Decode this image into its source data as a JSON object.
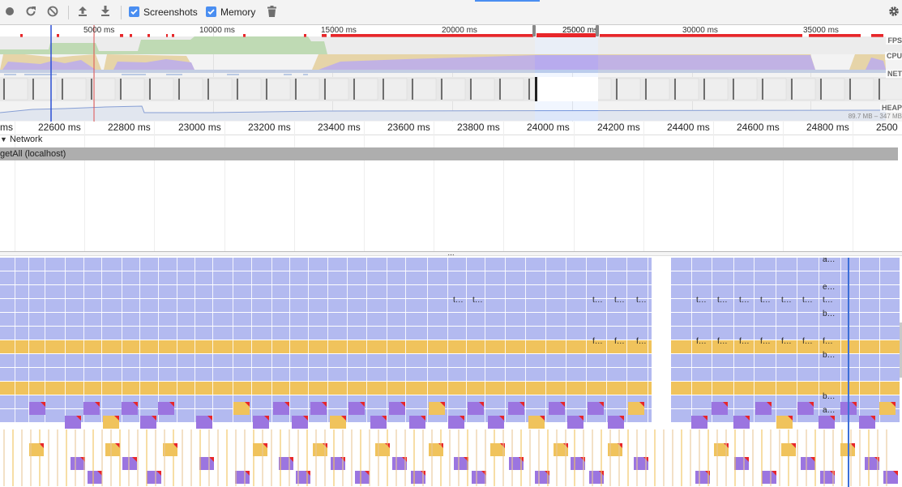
{
  "toolbar": {
    "record_label": "Record",
    "reload_label": "Reload and record",
    "clear_label": "Clear",
    "load_label": "Load profile",
    "save_label": "Save profile",
    "screenshots": {
      "label": "Screenshots",
      "checked": true
    },
    "memory": {
      "label": "Memory",
      "checked": true
    },
    "gc_label": "Collect garbage",
    "settings_label": "Capture settings"
  },
  "overview": {
    "ticks": [
      "5000 ms",
      "10000 ms",
      "15000 ms",
      "20000 ms",
      "25000 ms",
      "30000 ms",
      "35000 ms"
    ],
    "lanes": {
      "fps": "FPS",
      "cpu": "CPU",
      "net": "NET",
      "heap": "HEAP"
    },
    "heap_range": "89.7 MB – 347 MB",
    "selection_label": "25000 ms"
  },
  "ruler": {
    "ticks": [
      "ms",
      "22600 ms",
      "22800 ms",
      "23000 ms",
      "23200 ms",
      "23400 ms",
      "23600 ms",
      "23800 ms",
      "24000 ms",
      "24200 ms",
      "24400 ms",
      "24600 ms",
      "24800 ms",
      "2500"
    ]
  },
  "network": {
    "section_label": "Network",
    "request_label": "getAll (localhost)"
  },
  "divider_label": "...",
  "flame": {
    "labels": {
      "row0": "a…",
      "row2": "e…",
      "row3": "t…",
      "row4": "b…",
      "row6": "f…",
      "row7": "b…",
      "row10": "b…",
      "row11": "a…"
    }
  },
  "colors": {
    "script_blue": "#b3baf0",
    "yellow": "#f0c35c",
    "purple": "#9b75e0",
    "red": "#e8262a",
    "fps_green": "#a8d696",
    "cpu_yellow": "#eccf8c",
    "cpu_purple": "#b39be8",
    "marker_blue": "#3c6fd8"
  }
}
